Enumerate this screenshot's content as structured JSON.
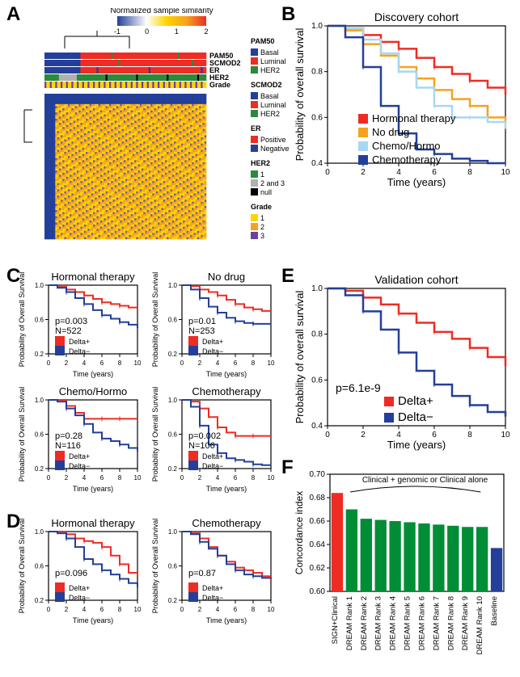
{
  "labels": {
    "A": "A",
    "B": "B",
    "C": "C",
    "D": "D",
    "E": "E",
    "F": "F"
  },
  "colors": {
    "red": "#ee2c24",
    "blue": "#233f99",
    "orange": "#f6a21d",
    "lightblue": "#a7d8f0",
    "green": "#2a8a3b",
    "green2": "#008d36",
    "grey": "#b0b0b0",
    "yellow": "#FFD400",
    "purple": "#6e3fa0",
    "purpleL": "#a97cc4",
    "black": "#000000",
    "grid": "#cccccc"
  },
  "panelA": {
    "colorbar": {
      "title": "Normalized sample similarity",
      "ticks": [
        "-1",
        "0",
        "1",
        "2"
      ]
    },
    "trackLabels": [
      "PAM50",
      "SCMOD2",
      "ER",
      "HER2",
      "Grade"
    ],
    "legends": {
      "PAM50": [
        {
          "label": "Basal",
          "color": "#233f99"
        },
        {
          "label": "Luminal",
          "color": "#ee2c24"
        },
        {
          "label": "HER2",
          "color": "#2a8a3b"
        }
      ],
      "SCMOD2": [
        {
          "label": "Basal",
          "color": "#233f99"
        },
        {
          "label": "Luminal",
          "color": "#ee2c24"
        },
        {
          "label": "HER2",
          "color": "#2a8a3b"
        }
      ],
      "ER": [
        {
          "label": "Positive",
          "color": "#ee2c24"
        },
        {
          "label": "Negative",
          "color": "#233f99"
        }
      ],
      "HER2": [
        {
          "label": "1",
          "color": "#2a8a3b"
        },
        {
          "label": "2 and 3",
          "color": "#b0b0b0"
        },
        {
          "label": "null",
          "color": "#000000"
        }
      ],
      "Grade": [
        {
          "label": "1",
          "color": "#FFD400"
        },
        {
          "label": "2",
          "color": "#f6a21d"
        },
        {
          "label": "3",
          "color": "#6e3fa0"
        }
      ]
    },
    "colorbarColors": [
      "#233f99",
      "#ffffff",
      "#FFD400",
      "#f6a21d",
      "#ee2c24"
    ]
  },
  "panelB": {
    "title": "Discovery cohort",
    "xlabel": "Time (years)",
    "ylabel": "Probability of overall survival",
    "xlim": [
      0,
      10
    ],
    "xtick_step": 2,
    "ylim": [
      0.4,
      1.0
    ],
    "ytick_step": 0.2,
    "legend": [
      {
        "label": "Hormonal therapy",
        "color": "#ee2c24"
      },
      {
        "label": "No drug",
        "color": "#f6a21d"
      },
      {
        "label": "Chemo/Hormo",
        "color": "#a7d8f0"
      },
      {
        "label": "Chemotherapy",
        "color": "#233f99"
      }
    ],
    "curves": {
      "hormonal": [
        [
          0,
          1.0
        ],
        [
          1,
          0.99
        ],
        [
          2,
          0.96
        ],
        [
          3,
          0.93
        ],
        [
          4,
          0.9
        ],
        [
          5,
          0.86
        ],
        [
          6,
          0.82
        ],
        [
          7,
          0.79
        ],
        [
          8,
          0.76
        ],
        [
          9,
          0.73
        ],
        [
          10,
          0.7
        ]
      ],
      "nodrug": [
        [
          0,
          1.0
        ],
        [
          1,
          0.98
        ],
        [
          2,
          0.92
        ],
        [
          3,
          0.87
        ],
        [
          4,
          0.82
        ],
        [
          5,
          0.77
        ],
        [
          6,
          0.72
        ],
        [
          7,
          0.68
        ],
        [
          8,
          0.65
        ],
        [
          9,
          0.6
        ],
        [
          10,
          0.58
        ]
      ],
      "chemohorm": [
        [
          0,
          1.0
        ],
        [
          1,
          0.99
        ],
        [
          2,
          0.94
        ],
        [
          3,
          0.88
        ],
        [
          4,
          0.8
        ],
        [
          5,
          0.73
        ],
        [
          6,
          0.65
        ],
        [
          7,
          0.6
        ],
        [
          8,
          0.6
        ],
        [
          9,
          0.58
        ],
        [
          10,
          0.55
        ]
      ],
      "chemo": [
        [
          0,
          1.0
        ],
        [
          1,
          0.95
        ],
        [
          2,
          0.82
        ],
        [
          3,
          0.65
        ],
        [
          4,
          0.53
        ],
        [
          5,
          0.46
        ],
        [
          6,
          0.44
        ],
        [
          7,
          0.42
        ],
        [
          8,
          0.41
        ],
        [
          9,
          0.4
        ],
        [
          10,
          0.4
        ]
      ]
    }
  },
  "panelC": {
    "ylabel": "Probability of Overall Survival",
    "xlabel": "Time (years)",
    "xlim": [
      0,
      10
    ],
    "xtick_step": 2,
    "ylim": [
      0.2,
      1.0
    ],
    "ytick_step": 0.4,
    "legend": [
      {
        "label": "Delta+",
        "color": "#ee2c24"
      },
      {
        "label": "Delta−",
        "color": "#233f99"
      }
    ],
    "panels": [
      {
        "title": "Hormonal therapy",
        "p": "p=0.003",
        "N": "N=522",
        "red": [
          [
            0,
            1.0
          ],
          [
            1,
            0.98
          ],
          [
            2,
            0.95
          ],
          [
            3,
            0.92
          ],
          [
            4,
            0.88
          ],
          [
            5,
            0.84
          ],
          [
            6,
            0.8
          ],
          [
            7,
            0.78
          ],
          [
            8,
            0.76
          ],
          [
            9,
            0.74
          ],
          [
            10,
            0.72
          ]
        ],
        "blue": [
          [
            0,
            1.0
          ],
          [
            1,
            0.97
          ],
          [
            2,
            0.92
          ],
          [
            3,
            0.85
          ],
          [
            4,
            0.78
          ],
          [
            5,
            0.71
          ],
          [
            6,
            0.65
          ],
          [
            7,
            0.61
          ],
          [
            8,
            0.57
          ],
          [
            9,
            0.54
          ],
          [
            10,
            0.5
          ]
        ]
      },
      {
        "title": "No drug",
        "p": "p=0.01",
        "N": "N=253",
        "red": [
          [
            0,
            1.0
          ],
          [
            1,
            0.99
          ],
          [
            2,
            0.95
          ],
          [
            3,
            0.92
          ],
          [
            4,
            0.88
          ],
          [
            5,
            0.83
          ],
          [
            6,
            0.78
          ],
          [
            7,
            0.74
          ],
          [
            8,
            0.72
          ],
          [
            9,
            0.7
          ],
          [
            10,
            0.7
          ]
        ],
        "blue": [
          [
            0,
            1.0
          ],
          [
            1,
            0.95
          ],
          [
            2,
            0.85
          ],
          [
            3,
            0.75
          ],
          [
            4,
            0.68
          ],
          [
            5,
            0.62
          ],
          [
            6,
            0.58
          ],
          [
            7,
            0.56
          ],
          [
            8,
            0.55
          ],
          [
            9,
            0.55
          ],
          [
            10,
            0.55
          ]
        ]
      },
      {
        "title": "Chemo/Hormo",
        "p": "p=0.28",
        "N": "N=116",
        "red": [
          [
            0,
            1.0
          ],
          [
            1,
            1.0
          ],
          [
            2,
            0.93
          ],
          [
            3,
            0.85
          ],
          [
            4,
            0.78
          ],
          [
            5,
            0.78
          ],
          [
            6,
            0.78
          ],
          [
            7,
            0.78
          ],
          [
            8,
            0.78
          ],
          [
            9,
            0.78
          ],
          [
            10,
            0.78
          ]
        ],
        "blue": [
          [
            0,
            1.0
          ],
          [
            1,
            0.98
          ],
          [
            2,
            0.9
          ],
          [
            3,
            0.82
          ],
          [
            4,
            0.72
          ],
          [
            5,
            0.62
          ],
          [
            6,
            0.55
          ],
          [
            7,
            0.52
          ],
          [
            8,
            0.48
          ],
          [
            9,
            0.44
          ],
          [
            10,
            0.4
          ]
        ]
      },
      {
        "title": "Chemotherapy",
        "p": "p=0.002",
        "N": "N=106",
        "red": [
          [
            0,
            1.0
          ],
          [
            1,
            0.98
          ],
          [
            2,
            0.9
          ],
          [
            3,
            0.8
          ],
          [
            4,
            0.68
          ],
          [
            5,
            0.62
          ],
          [
            6,
            0.58
          ],
          [
            7,
            0.58
          ],
          [
            8,
            0.58
          ],
          [
            9,
            0.58
          ],
          [
            10,
            0.58
          ]
        ],
        "blue": [
          [
            0,
            1.0
          ],
          [
            1,
            0.92
          ],
          [
            2,
            0.7
          ],
          [
            3,
            0.48
          ],
          [
            4,
            0.38
          ],
          [
            5,
            0.32
          ],
          [
            6,
            0.3
          ],
          [
            7,
            0.28
          ],
          [
            8,
            0.25
          ],
          [
            9,
            0.24
          ],
          [
            10,
            0.24
          ]
        ]
      }
    ]
  },
  "panelD": {
    "ylabel": "Probability of Overall Survival",
    "xlabel": "Time (years)",
    "xlim": [
      0,
      10
    ],
    "xtick_step": 2,
    "ylim": [
      0.2,
      1.0
    ],
    "ytick_step": 0.4,
    "legend": [
      {
        "label": "Delta+",
        "color": "#ee2c24"
      },
      {
        "label": "Delta−",
        "color": "#233f99"
      }
    ],
    "panels": [
      {
        "title": "Hormonal therapy",
        "p": "p=0.096",
        "red": [
          [
            0,
            1.0
          ],
          [
            1,
            1.0
          ],
          [
            2,
            0.97
          ],
          [
            3,
            0.92
          ],
          [
            4,
            0.89
          ],
          [
            5,
            0.87
          ],
          [
            6,
            0.82
          ],
          [
            7,
            0.72
          ],
          [
            8,
            0.62
          ],
          [
            9,
            0.52
          ],
          [
            10,
            0.48
          ]
        ],
        "blue": [
          [
            0,
            1.0
          ],
          [
            1,
            0.98
          ],
          [
            2,
            0.92
          ],
          [
            3,
            0.82
          ],
          [
            4,
            0.68
          ],
          [
            5,
            0.62
          ],
          [
            6,
            0.55
          ],
          [
            7,
            0.5
          ],
          [
            8,
            0.45
          ],
          [
            9,
            0.4
          ],
          [
            10,
            0.35
          ]
        ]
      },
      {
        "title": "Chemotherapy",
        "p": "p=0.87",
        "red": [
          [
            0,
            1.0
          ],
          [
            1,
            0.98
          ],
          [
            2,
            0.92
          ],
          [
            3,
            0.82
          ],
          [
            4,
            0.72
          ],
          [
            5,
            0.65
          ],
          [
            6,
            0.58
          ],
          [
            7,
            0.55
          ],
          [
            8,
            0.52
          ],
          [
            9,
            0.48
          ],
          [
            10,
            0.43
          ]
        ],
        "blue": [
          [
            0,
            1.0
          ],
          [
            1,
            0.97
          ],
          [
            2,
            0.88
          ],
          [
            3,
            0.8
          ],
          [
            4,
            0.72
          ],
          [
            5,
            0.62
          ],
          [
            6,
            0.55
          ],
          [
            7,
            0.5
          ],
          [
            8,
            0.48
          ],
          [
            9,
            0.46
          ],
          [
            10,
            0.45
          ]
        ]
      }
    ]
  },
  "panelE": {
    "title": "Validation cohort",
    "xlabel": "Time (years)",
    "ylabel": "Probability of overall survival",
    "xlim": [
      0,
      10
    ],
    "xtick_step": 2,
    "ylim": [
      0.4,
      1.0
    ],
    "ytick_step": 0.2,
    "p": "p=6.1e-9",
    "legend": [
      {
        "label": "Delta+",
        "color": "#ee2c24"
      },
      {
        "label": "Delta−",
        "color": "#233f99"
      }
    ],
    "curves": {
      "deltaPlus": [
        [
          0,
          1.0
        ],
        [
          1,
          0.99
        ],
        [
          2,
          0.96
        ],
        [
          3,
          0.93
        ],
        [
          4,
          0.89
        ],
        [
          5,
          0.85
        ],
        [
          6,
          0.81
        ],
        [
          7,
          0.78
        ],
        [
          8,
          0.74
        ],
        [
          9,
          0.7
        ],
        [
          10,
          0.66
        ]
      ],
      "deltaMinus": [
        [
          0,
          1.0
        ],
        [
          1,
          0.97
        ],
        [
          2,
          0.9
        ],
        [
          3,
          0.82
        ],
        [
          4,
          0.72
        ],
        [
          5,
          0.64
        ],
        [
          6,
          0.58
        ],
        [
          7,
          0.53
        ],
        [
          8,
          0.49
        ],
        [
          9,
          0.46
        ],
        [
          10,
          0.44
        ]
      ]
    }
  },
  "panelF": {
    "ylabel": "Concordance index",
    "annotation": "Clinical + genomic or Clinical alone",
    "ylim": [
      0.6,
      0.7
    ],
    "yticks": [
      0.6,
      0.62,
      0.64,
      0.66,
      0.68,
      0.7
    ],
    "bars": [
      {
        "label": "SIGN+Clinical",
        "value": 0.684,
        "color": "#ee2c24"
      },
      {
        "label": "DREAM Rank 1",
        "value": 0.67,
        "color": "#008d36"
      },
      {
        "label": "DREAM Rank 2",
        "value": 0.662,
        "color": "#008d36"
      },
      {
        "label": "DREAM Rank 3",
        "value": 0.661,
        "color": "#008d36"
      },
      {
        "label": "DREAM Rank 4",
        "value": 0.66,
        "color": "#008d36"
      },
      {
        "label": "DREAM Rank 5",
        "value": 0.659,
        "color": "#008d36"
      },
      {
        "label": "DREAM Rank 6",
        "value": 0.658,
        "color": "#008d36"
      },
      {
        "label": "DREAM Rank 7",
        "value": 0.657,
        "color": "#008d36"
      },
      {
        "label": "DREAM Rank 8",
        "value": 0.656,
        "color": "#008d36"
      },
      {
        "label": "DREAM Rank 9",
        "value": 0.655,
        "color": "#008d36"
      },
      {
        "label": "DREAM Rank 10",
        "value": 0.655,
        "color": "#008d36"
      },
      {
        "label": "Baseline",
        "value": 0.637,
        "color": "#233f99"
      }
    ]
  }
}
